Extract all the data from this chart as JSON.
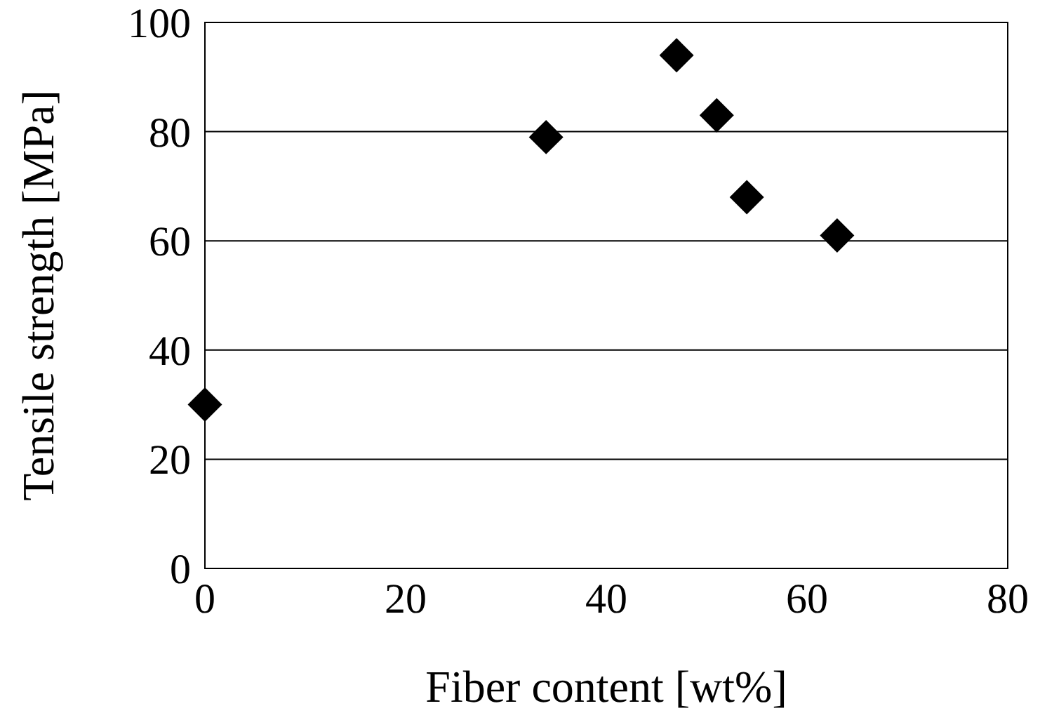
{
  "chart_data": {
    "type": "scatter",
    "xlabel": "Fiber content [wt%]",
    "ylabel": "Tensile strength [MPa]",
    "x": [
      0,
      34,
      47,
      51,
      54,
      63
    ],
    "series": [
      {
        "color": "#000000",
        "values": [
          30,
          79,
          94,
          83,
          68,
          61
        ]
      }
    ],
    "xlim": [
      0,
      80
    ],
    "xticks": [
      0,
      20,
      40,
      60,
      80
    ],
    "ylim": [
      0,
      100
    ],
    "yticks": [
      0,
      20,
      40,
      60,
      80,
      100
    ],
    "grid": "y",
    "marker": "diamond"
  }
}
